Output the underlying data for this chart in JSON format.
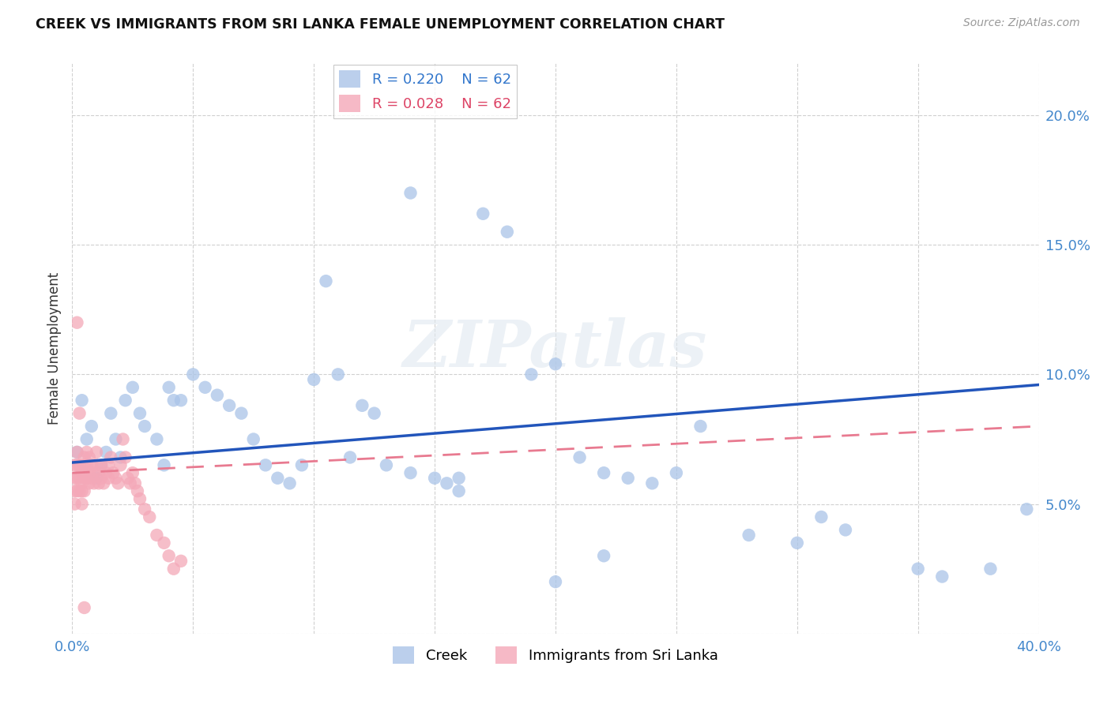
{
  "title": "CREEK VS IMMIGRANTS FROM SRI LANKA FEMALE UNEMPLOYMENT CORRELATION CHART",
  "source": "Source: ZipAtlas.com",
  "ylabel": "Female Unemployment",
  "xlim": [
    0.0,
    0.4
  ],
  "ylim": [
    0.0,
    0.22
  ],
  "background_color": "#ffffff",
  "grid_color": "#d0d0d0",
  "watermark": "ZIPatlas",
  "legend_R_blue": "R = 0.220",
  "legend_N_blue": "N = 62",
  "legend_R_pink": "R = 0.028",
  "legend_N_pink": "N = 62",
  "blue_color": "#aac4e8",
  "pink_color": "#f4a8b8",
  "line_blue_color": "#2255bb",
  "line_pink_color": "#e87a90",
  "creek_x": [
    0.002,
    0.004,
    0.006,
    0.008,
    0.01,
    0.012,
    0.014,
    0.016,
    0.018,
    0.02,
    0.022,
    0.025,
    0.028,
    0.03,
    0.035,
    0.038,
    0.04,
    0.042,
    0.045,
    0.05,
    0.055,
    0.06,
    0.065,
    0.07,
    0.075,
    0.08,
    0.085,
    0.09,
    0.095,
    0.1,
    0.105,
    0.11,
    0.115,
    0.12,
    0.125,
    0.13,
    0.14,
    0.15,
    0.155,
    0.16,
    0.17,
    0.18,
    0.19,
    0.2,
    0.21,
    0.22,
    0.23,
    0.24,
    0.25,
    0.26,
    0.28,
    0.3,
    0.31,
    0.32,
    0.35,
    0.36,
    0.38,
    0.395,
    0.14,
    0.16,
    0.2,
    0.22
  ],
  "creek_y": [
    0.07,
    0.09,
    0.075,
    0.08,
    0.06,
    0.065,
    0.07,
    0.085,
    0.075,
    0.068,
    0.09,
    0.095,
    0.085,
    0.08,
    0.075,
    0.065,
    0.095,
    0.09,
    0.09,
    0.1,
    0.095,
    0.092,
    0.088,
    0.085,
    0.075,
    0.065,
    0.06,
    0.058,
    0.065,
    0.098,
    0.136,
    0.1,
    0.068,
    0.088,
    0.085,
    0.065,
    0.062,
    0.06,
    0.058,
    0.055,
    0.162,
    0.155,
    0.1,
    0.104,
    0.068,
    0.062,
    0.06,
    0.058,
    0.062,
    0.08,
    0.038,
    0.035,
    0.045,
    0.04,
    0.025,
    0.022,
    0.025,
    0.048,
    0.17,
    0.06,
    0.02,
    0.03
  ],
  "srilanka_x": [
    0.001,
    0.001,
    0.001,
    0.001,
    0.002,
    0.002,
    0.002,
    0.002,
    0.003,
    0.003,
    0.003,
    0.004,
    0.004,
    0.004,
    0.005,
    0.005,
    0.005,
    0.005,
    0.006,
    0.006,
    0.006,
    0.007,
    0.007,
    0.007,
    0.008,
    0.008,
    0.009,
    0.009,
    0.01,
    0.01,
    0.011,
    0.011,
    0.012,
    0.012,
    0.013,
    0.014,
    0.015,
    0.015,
    0.016,
    0.017,
    0.018,
    0.019,
    0.02,
    0.021,
    0.022,
    0.023,
    0.024,
    0.025,
    0.026,
    0.027,
    0.028,
    0.03,
    0.032,
    0.035,
    0.038,
    0.04,
    0.042,
    0.045,
    0.002,
    0.003,
    0.004,
    0.005
  ],
  "srilanka_y": [
    0.065,
    0.06,
    0.055,
    0.05,
    0.07,
    0.065,
    0.06,
    0.055,
    0.065,
    0.06,
    0.055,
    0.062,
    0.058,
    0.055,
    0.068,
    0.065,
    0.06,
    0.055,
    0.07,
    0.065,
    0.06,
    0.068,
    0.062,
    0.058,
    0.065,
    0.06,
    0.062,
    0.058,
    0.07,
    0.065,
    0.062,
    0.058,
    0.065,
    0.06,
    0.058,
    0.062,
    0.065,
    0.06,
    0.068,
    0.062,
    0.06,
    0.058,
    0.065,
    0.075,
    0.068,
    0.06,
    0.058,
    0.062,
    0.058,
    0.055,
    0.052,
    0.048,
    0.045,
    0.038,
    0.035,
    0.03,
    0.025,
    0.028,
    0.12,
    0.085,
    0.05,
    0.01
  ]
}
